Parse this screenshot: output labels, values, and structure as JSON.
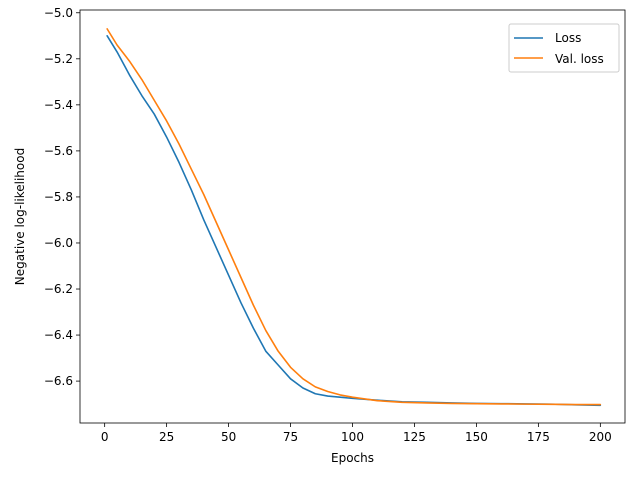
{
  "chart_data": {
    "type": "line",
    "title": "",
    "xlabel": "Epochs",
    "ylabel": "Negative log-likelihood",
    "xlim": [
      -9.95,
      209.95
    ],
    "ylim": [
      -6.782,
      -4.988
    ],
    "x_ticks": [
      0,
      25,
      50,
      75,
      100,
      125,
      150,
      175,
      200
    ],
    "x_tick_labels": [
      "0",
      "25",
      "50",
      "75",
      "100",
      "125",
      "150",
      "175",
      "200"
    ],
    "y_ticks": [
      -5.0,
      -5.2,
      -5.4,
      -5.6,
      -5.8,
      -6.0,
      -6.2,
      -6.4,
      -6.6
    ],
    "y_tick_labels": [
      "−5.0",
      "−5.2",
      "−5.4",
      "−5.6",
      "−5.8",
      "−6.0",
      "−6.2",
      "−6.4",
      "−6.6"
    ],
    "grid": false,
    "legend": {
      "location": "top-right",
      "entries": [
        "Loss",
        "Val. loss"
      ]
    },
    "series": [
      {
        "name": "Loss",
        "color": "#1f77b4",
        "x": [
          1,
          5,
          10,
          15,
          20,
          25,
          30,
          35,
          40,
          45,
          50,
          55,
          60,
          65,
          70,
          75,
          80,
          85,
          90,
          95,
          100,
          110,
          120,
          130,
          140,
          150,
          160,
          170,
          180,
          190,
          200
        ],
        "y": [
          -5.1,
          -5.17,
          -5.27,
          -5.36,
          -5.44,
          -5.54,
          -5.65,
          -5.77,
          -5.9,
          -6.02,
          -6.14,
          -6.26,
          -6.37,
          -6.47,
          -6.53,
          -6.59,
          -6.63,
          -6.655,
          -6.665,
          -6.67,
          -6.675,
          -6.683,
          -6.69,
          -6.692,
          -6.695,
          -6.697,
          -6.698,
          -6.699,
          -6.7,
          -6.703,
          -6.705
        ]
      },
      {
        "name": "Val. loss",
        "color": "#ff7f0e",
        "x": [
          1,
          5,
          10,
          15,
          20,
          25,
          30,
          35,
          40,
          45,
          50,
          55,
          60,
          65,
          70,
          75,
          80,
          85,
          90,
          95,
          100,
          110,
          120,
          130,
          140,
          150,
          160,
          170,
          180,
          190,
          200
        ],
        "y": [
          -5.07,
          -5.14,
          -5.21,
          -5.29,
          -5.38,
          -5.47,
          -5.57,
          -5.68,
          -5.79,
          -5.91,
          -6.03,
          -6.15,
          -6.27,
          -6.38,
          -6.47,
          -6.54,
          -6.59,
          -6.625,
          -6.645,
          -6.66,
          -6.67,
          -6.685,
          -6.692,
          -6.695,
          -6.697,
          -6.698,
          -6.699,
          -6.7,
          -6.701,
          -6.702,
          -6.702
        ]
      }
    ]
  }
}
